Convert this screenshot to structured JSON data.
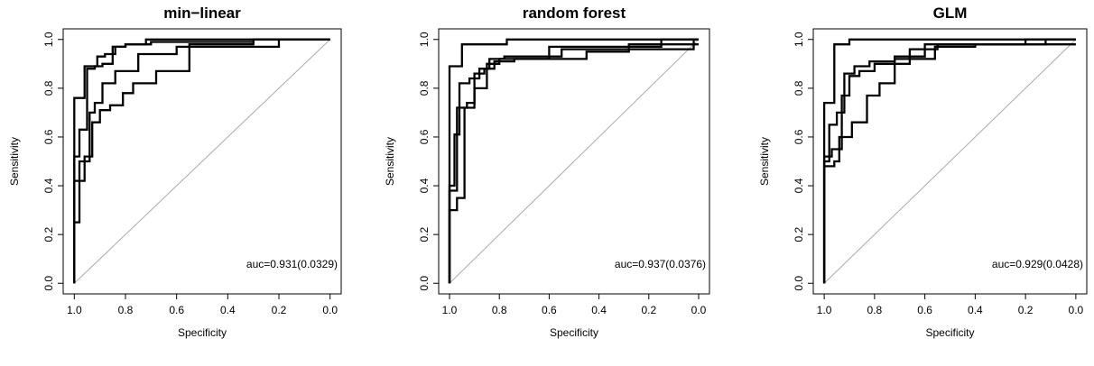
{
  "chart_data": [
    {
      "type": "line",
      "title": "min−linear",
      "xlabel": "Specificity",
      "ylabel": "Sensitivity",
      "xlim": [
        1.0,
        0.0
      ],
      "ylim": [
        0.0,
        1.0
      ],
      "x_ticks": [
        "1.0",
        "0.8",
        "0.6",
        "0.4",
        "0.2",
        "0.0"
      ],
      "y_ticks": [
        "0.0",
        "0.2",
        "0.4",
        "0.6",
        "0.8",
        "1.0"
      ],
      "diagonal": true,
      "annotation": "auc=0.931(0.0329)",
      "series": [
        {
          "x": [
            1.0,
            1.0,
            0.96,
            0.96,
            0.91,
            0.91,
            0.88,
            0.88,
            0.84,
            0.84,
            0.8,
            0.8,
            0.72,
            0.72,
            0.0
          ],
          "y": [
            0.0,
            0.76,
            0.76,
            0.89,
            0.89,
            0.93,
            0.93,
            0.94,
            0.94,
            0.97,
            0.97,
            0.98,
            0.98,
            1.0,
            1.0
          ]
        },
        {
          "x": [
            1.0,
            1.0,
            0.98,
            0.98,
            0.95,
            0.95,
            0.92,
            0.92,
            0.89,
            0.89,
            0.85,
            0.85,
            0.8,
            0.8,
            0.7,
            0.7,
            0.3,
            0.3,
            0.0
          ],
          "y": [
            0.0,
            0.52,
            0.52,
            0.63,
            0.63,
            0.88,
            0.88,
            0.89,
            0.89,
            0.9,
            0.9,
            0.97,
            0.97,
            0.98,
            0.98,
            0.99,
            0.99,
            1.0,
            1.0
          ]
        },
        {
          "x": [
            1.0,
            1.0,
            0.98,
            0.98,
            0.94,
            0.94,
            0.92,
            0.92,
            0.89,
            0.89,
            0.84,
            0.84,
            0.75,
            0.75,
            0.6,
            0.6,
            0.2,
            0.2,
            0.0
          ],
          "y": [
            0.0,
            0.25,
            0.25,
            0.5,
            0.5,
            0.7,
            0.7,
            0.74,
            0.74,
            0.82,
            0.82,
            0.87,
            0.87,
            0.94,
            0.94,
            0.97,
            0.97,
            1.0,
            1.0
          ]
        },
        {
          "x": [
            1.0,
            1.0,
            0.96,
            0.96,
            0.93,
            0.93,
            0.9,
            0.9,
            0.86,
            0.86,
            0.81,
            0.81,
            0.77,
            0.77,
            0.68,
            0.68,
            0.55,
            0.55,
            0.3,
            0.3,
            0.0
          ],
          "y": [
            0.0,
            0.42,
            0.42,
            0.52,
            0.52,
            0.66,
            0.66,
            0.71,
            0.71,
            0.73,
            0.73,
            0.78,
            0.78,
            0.82,
            0.82,
            0.87,
            0.87,
            0.98,
            0.98,
            1.0,
            1.0
          ]
        }
      ]
    },
    {
      "type": "line",
      "title": "random forest",
      "xlabel": "Specificity",
      "ylabel": "Sensitivity",
      "xlim": [
        1.0,
        0.0
      ],
      "ylim": [
        0.0,
        1.0
      ],
      "x_ticks": [
        "1.0",
        "0.8",
        "0.6",
        "0.4",
        "0.2",
        "0.0"
      ],
      "y_ticks": [
        "0.0",
        "0.2",
        "0.4",
        "0.6",
        "0.8",
        "1.0"
      ],
      "diagonal": true,
      "annotation": "auc=0.937(0.0376)",
      "series": [
        {
          "x": [
            1.0,
            1.0,
            0.95,
            0.95,
            0.77,
            0.77,
            0.65,
            0.65,
            0.0
          ],
          "y": [
            0.0,
            0.89,
            0.89,
            0.98,
            0.98,
            1.0,
            1.0,
            1.0,
            1.0
          ]
        },
        {
          "x": [
            1.0,
            1.0,
            0.97,
            0.97,
            0.94,
            0.94,
            0.9,
            0.9,
            0.85,
            0.85,
            0.8,
            0.8,
            0.6,
            0.6,
            0.15,
            0.15,
            0.0
          ],
          "y": [
            0.0,
            0.3,
            0.3,
            0.35,
            0.35,
            0.72,
            0.72,
            0.8,
            0.8,
            0.9,
            0.9,
            0.92,
            0.92,
            0.97,
            0.97,
            1.0,
            1.0
          ]
        },
        {
          "x": [
            1.0,
            1.0,
            0.98,
            0.98,
            0.96,
            0.96,
            0.92,
            0.92,
            0.88,
            0.88,
            0.84,
            0.84,
            0.78,
            0.78,
            0.55,
            0.55,
            0.02,
            0.02,
            0.0
          ],
          "y": [
            0.0,
            0.4,
            0.4,
            0.61,
            0.61,
            0.82,
            0.82,
            0.84,
            0.84,
            0.88,
            0.88,
            0.92,
            0.92,
            0.93,
            0.93,
            0.96,
            0.96,
            1.0,
            1.0
          ]
        },
        {
          "x": [
            1.0,
            1.0,
            0.97,
            0.97,
            0.93,
            0.93,
            0.9,
            0.9,
            0.86,
            0.86,
            0.82,
            0.82,
            0.74,
            0.74,
            0.45,
            0.45,
            0.28,
            0.28,
            0.0
          ],
          "y": [
            0.0,
            0.38,
            0.38,
            0.72,
            0.72,
            0.74,
            0.74,
            0.86,
            0.86,
            0.88,
            0.88,
            0.91,
            0.91,
            0.92,
            0.92,
            0.95,
            0.95,
            0.98,
            0.98
          ]
        }
      ]
    },
    {
      "type": "line",
      "title": "GLM",
      "xlabel": "Specificity",
      "ylabel": "Sensitivity",
      "xlim": [
        1.0,
        0.0
      ],
      "ylim": [
        0.0,
        1.0
      ],
      "x_ticks": [
        "1.0",
        "0.8",
        "0.6",
        "0.4",
        "0.2",
        "0.0"
      ],
      "y_ticks": [
        "0.0",
        "0.2",
        "0.4",
        "0.6",
        "0.8",
        "1.0"
      ],
      "diagonal": true,
      "annotation": "auc=0.929(0.0428)",
      "series": [
        {
          "x": [
            1.0,
            1.0,
            0.96,
            0.96,
            0.9,
            0.9,
            0.0
          ],
          "y": [
            0.0,
            0.74,
            0.74,
            0.98,
            0.98,
            1.0,
            1.0
          ]
        },
        {
          "x": [
            1.0,
            1.0,
            0.98,
            0.98,
            0.95,
            0.95,
            0.92,
            0.92,
            0.88,
            0.88,
            0.82,
            0.82,
            0.72,
            0.72,
            0.6,
            0.6,
            0.0
          ],
          "y": [
            0.0,
            0.5,
            0.5,
            0.65,
            0.65,
            0.7,
            0.7,
            0.86,
            0.86,
            0.89,
            0.89,
            0.91,
            0.91,
            0.93,
            0.93,
            0.98,
            0.98
          ]
        },
        {
          "x": [
            1.0,
            1.0,
            0.97,
            0.97,
            0.93,
            0.93,
            0.9,
            0.9,
            0.86,
            0.86,
            0.8,
            0.8,
            0.72,
            0.72,
            0.56,
            0.56,
            0.4,
            0.4,
            0.2,
            0.2,
            0.0
          ],
          "y": [
            0.0,
            0.52,
            0.52,
            0.55,
            0.55,
            0.77,
            0.77,
            0.85,
            0.85,
            0.87,
            0.87,
            0.9,
            0.9,
            0.92,
            0.92,
            0.97,
            0.97,
            0.98,
            0.98,
            1.0,
            1.0
          ]
        },
        {
          "x": [
            1.0,
            1.0,
            0.96,
            0.96,
            0.94,
            0.94,
            0.89,
            0.89,
            0.83,
            0.83,
            0.78,
            0.78,
            0.72,
            0.72,
            0.66,
            0.66,
            0.55,
            0.55,
            0.12,
            0.12,
            0.0
          ],
          "y": [
            0.0,
            0.48,
            0.48,
            0.5,
            0.5,
            0.6,
            0.6,
            0.66,
            0.66,
            0.77,
            0.77,
            0.82,
            0.82,
            0.9,
            0.9,
            0.96,
            0.96,
            0.98,
            0.98,
            1.0,
            1.0
          ]
        }
      ]
    }
  ]
}
